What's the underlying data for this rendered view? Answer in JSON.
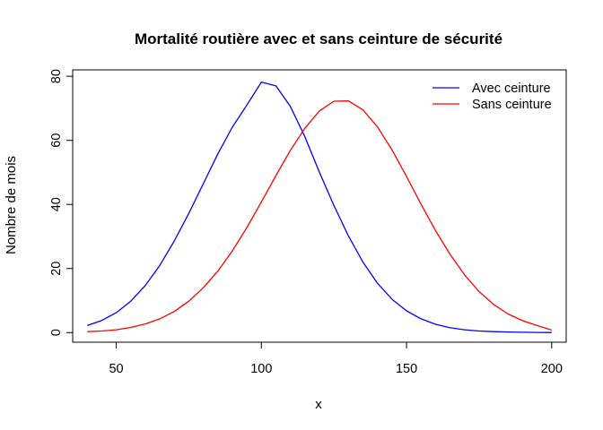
{
  "chart_data": {
    "type": "line",
    "title": "Mortalité routière avec et sans ceinture de sécurité",
    "xlabel": "x",
    "ylabel": "Nombre de mois",
    "xlim": [
      35,
      205
    ],
    "ylim": [
      -3,
      82
    ],
    "x_ticks": [
      50,
      100,
      150,
      200
    ],
    "y_ticks": [
      0,
      20,
      40,
      60,
      80
    ],
    "legend_position": "top-right",
    "grid": false,
    "series": [
      {
        "name": "Avec ceinture",
        "color": "#0000ff",
        "x": [
          40,
          45,
          50,
          55,
          60,
          65,
          70,
          75,
          80,
          85,
          90,
          95,
          100,
          105,
          110,
          115,
          120,
          125,
          130,
          135,
          140,
          145,
          150,
          155,
          160,
          165,
          170,
          175,
          180,
          185,
          190,
          195,
          200
        ],
        "y": [
          2.2,
          3.8,
          6.2,
          9.8,
          14.7,
          21.0,
          28.6,
          37.2,
          46.5,
          55.8,
          64.1,
          71.0,
          78.2,
          77.0,
          70.6,
          61.1,
          50.0,
          39.6,
          30.1,
          22.0,
          15.4,
          10.4,
          6.8,
          4.3,
          2.6,
          1.5,
          0.9,
          0.5,
          0.3,
          0.2,
          0.1,
          0.05,
          0.02
        ]
      },
      {
        "name": "Sans ceinture",
        "color": "#ff0000",
        "x": [
          40,
          45,
          50,
          55,
          60,
          65,
          70,
          75,
          80,
          85,
          90,
          95,
          100,
          105,
          110,
          115,
          120,
          125,
          130,
          135,
          140,
          145,
          150,
          155,
          160,
          165,
          170,
          175,
          180,
          185,
          190,
          195,
          200
        ],
        "y": [
          0.3,
          0.5,
          0.9,
          1.6,
          2.7,
          4.3,
          6.6,
          9.8,
          14.0,
          19.2,
          25.5,
          32.8,
          40.8,
          49.0,
          56.9,
          63.8,
          69.2,
          72.2,
          72.3,
          69.5,
          64.2,
          57.0,
          48.7,
          40.1,
          31.8,
          24.4,
          18.0,
          12.8,
          8.8,
          5.8,
          3.7,
          2.2,
          0.8
        ]
      }
    ]
  }
}
